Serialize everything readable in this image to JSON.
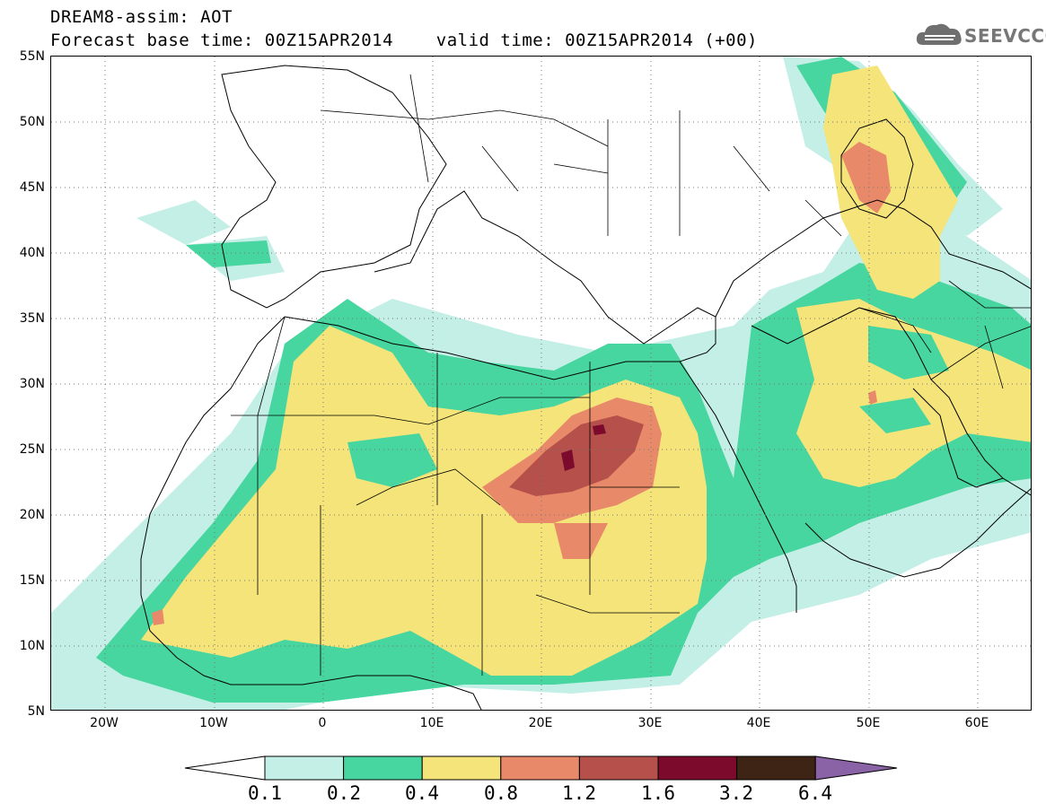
{
  "header": {
    "title_line1": "DREAM8-assim: AOT",
    "title_line2": "Forecast base time: 00Z15APR2014    valid time: 00Z15APR2014 (+00)"
  },
  "logo": {
    "text": "SEEVCCC",
    "icon": "cloud-icon"
  },
  "map": {
    "lon_range": [
      -25,
      65
    ],
    "lat_range": [
      5,
      55
    ],
    "lat_labels": [
      "55N",
      "50N",
      "45N",
      "40N",
      "35N",
      "30N",
      "25N",
      "20N",
      "15N",
      "10N",
      "5N"
    ],
    "lon_labels": [
      "20W",
      "10W",
      "0",
      "10E",
      "20E",
      "30E",
      "40E",
      "50E",
      "60E"
    ],
    "gridlines": "dotted"
  },
  "legend": {
    "levels": [
      "0.1",
      "0.2",
      "0.4",
      "0.8",
      "1.2",
      "1.6",
      "3.2",
      "6.4"
    ],
    "colors": [
      "#ffffff",
      "#c4efe6",
      "#48d6a0",
      "#f4e47a",
      "#e8896a",
      "#b5504a",
      "#7c0a2c",
      "#3d2414",
      "#8a62a6"
    ]
  }
}
